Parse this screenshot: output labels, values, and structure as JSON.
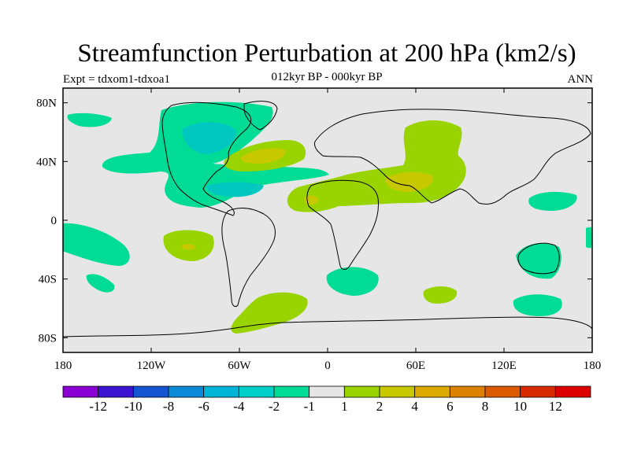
{
  "chart_data": {
    "type": "contour-map",
    "title": "Streamfunction Perturbation at 200 hPa (km2/s)",
    "subtitle": "012kyr BP - 000kyr BP",
    "experiment": "Expt = tdxom1-tdxoa1",
    "season": "ANN",
    "xlim": [
      -180,
      180
    ],
    "ylim": [
      -90,
      90
    ],
    "x_tick_labels": [
      {
        "value": -180,
        "label": "180"
      },
      {
        "value": -120,
        "label": "120W"
      },
      {
        "value": -60,
        "label": "60W"
      },
      {
        "value": 0,
        "label": "0"
      },
      {
        "value": 60,
        "label": "60E"
      },
      {
        "value": 120,
        "label": "120E"
      },
      {
        "value": 180,
        "label": "180"
      }
    ],
    "y_tick_labels": [
      {
        "value": 80,
        "label": "80N"
      },
      {
        "value": 40,
        "label": "40N"
      },
      {
        "value": 0,
        "label": "0"
      },
      {
        "value": -40,
        "label": "40S"
      },
      {
        "value": -80,
        "label": "80S"
      }
    ],
    "colorbar": {
      "labels": [
        "-12",
        "-10",
        "-8",
        "-6",
        "-4",
        "-2",
        "-1",
        "1",
        "2",
        "4",
        "6",
        "8",
        "10",
        "12"
      ],
      "colors": [
        "#8a00d4",
        "#3a14d0",
        "#1454d0",
        "#0a8ad8",
        "#00b4d8",
        "#00d0c8",
        "#00dc96",
        "#e6e6e6",
        "#9ad400",
        "#c8c800",
        "#dcaa00",
        "#dc8200",
        "#dc5a00",
        "#d82a00",
        "#dc0000"
      ]
    },
    "regions": [
      {
        "level": "-2 to -1",
        "color": "#00dc96",
        "lon_range": [
          -115,
          -40
        ],
        "lat_range": [
          15,
          80
        ],
        "note": "North Atlantic / North America negative anomaly"
      },
      {
        "level": "-4 to -2",
        "color": "#00c8c0",
        "lon_range": [
          -110,
          -75
        ],
        "lat_range": [
          50,
          70
        ],
        "note": "Hudson Bay core"
      },
      {
        "level": "-4 to -2",
        "color": "#00c8c0",
        "lon_range": [
          -85,
          -55
        ],
        "lat_range": [
          15,
          25
        ],
        "note": "Caribbean core"
      },
      {
        "level": "-2 to -1",
        "color": "#00dc96",
        "lon_range": [
          -180,
          -120
        ],
        "lat_range": [
          -40,
          -5
        ],
        "note": "South Pacific"
      },
      {
        "level": "-2 to -1",
        "color": "#00dc96",
        "lon_range": [
          0,
          30
        ],
        "lat_range": [
          -50,
          -30
        ],
        "note": "South Atlantic"
      },
      {
        "level": "-2 to -1",
        "color": "#00dc96",
        "lon_range": [
          115,
          155
        ],
        "lat_range": [
          -40,
          -20
        ],
        "note": "Australia"
      },
      {
        "level": "-2 to -1",
        "color": "#00dc96",
        "lon_range": [
          125,
          155
        ],
        "lat_range": [
          -60,
          -45
        ],
        "note": "Southern Ocean"
      },
      {
        "level": "1 to 2",
        "color": "#9ad400",
        "lon_range": [
          -70,
          -20
        ],
        "lat_range": [
          30,
          50
        ],
        "note": "North Atlantic positive"
      },
      {
        "level": "1 to 2",
        "color": "#9ad400",
        "lon_range": [
          -25,
          90
        ],
        "lat_range": [
          5,
          65
        ],
        "note": "Eurasia / Africa positive"
      },
      {
        "level": "2 to 4",
        "color": "#c8c800",
        "lon_range": [
          40,
          75
        ],
        "lat_range": [
          20,
          35
        ],
        "note": "Arabia / Iran core"
      },
      {
        "level": "1 to 2",
        "color": "#9ad400",
        "lon_range": [
          -70,
          -20
        ],
        "lat_range": [
          -75,
          -45
        ],
        "note": "Drake Passage / South Atlantic"
      }
    ]
  }
}
